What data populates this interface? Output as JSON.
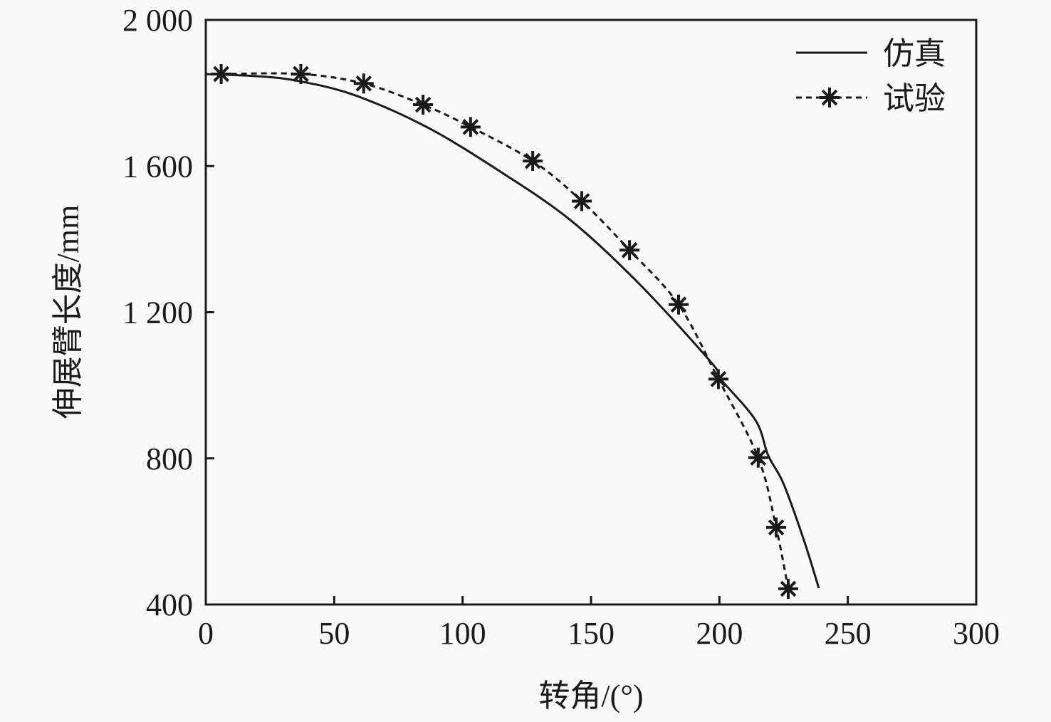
{
  "chart_data": {
    "type": "line",
    "title": "",
    "xlabel": "转角/(°)",
    "ylabel": "伸展臂长度/mm",
    "xlim": [
      0,
      300
    ],
    "ylim": [
      400,
      2000
    ],
    "xticks": [
      0,
      50,
      100,
      150,
      200,
      250,
      300
    ],
    "xtick_labels": [
      "0",
      "50",
      "100",
      "150",
      "200",
      "250",
      "300"
    ],
    "yticks": [
      400,
      800,
      1200,
      1600,
      2000
    ],
    "ytick_labels": [
      "400",
      "800",
      "1 200",
      "1 600",
      "2 000"
    ],
    "grid": false,
    "legend_position": "top-right",
    "series": [
      {
        "name": "仿真",
        "style": "solid",
        "marker": "none",
        "x": [
          0,
          20,
          36,
          58,
          86,
          114,
          142,
          169,
          197,
          200,
          214,
          219,
          225,
          233,
          238.7
        ],
        "y": [
          1852,
          1846,
          1833,
          1794,
          1707,
          1588,
          1452,
          1276,
          1061,
          1021,
          905,
          808,
          730,
          574,
          445
        ]
      },
      {
        "name": "试验",
        "style": "dashed",
        "marker": "asterisk",
        "x": [
          6,
          37,
          61.5,
          84.6,
          103.1,
          127.3,
          146.4,
          165,
          184.1,
          199.6,
          215.1,
          222.1,
          226.8
        ],
        "y": [
          1852,
          1852,
          1826,
          1768,
          1707,
          1614,
          1504,
          1370,
          1221,
          1017,
          802,
          611,
          443
        ]
      }
    ]
  }
}
